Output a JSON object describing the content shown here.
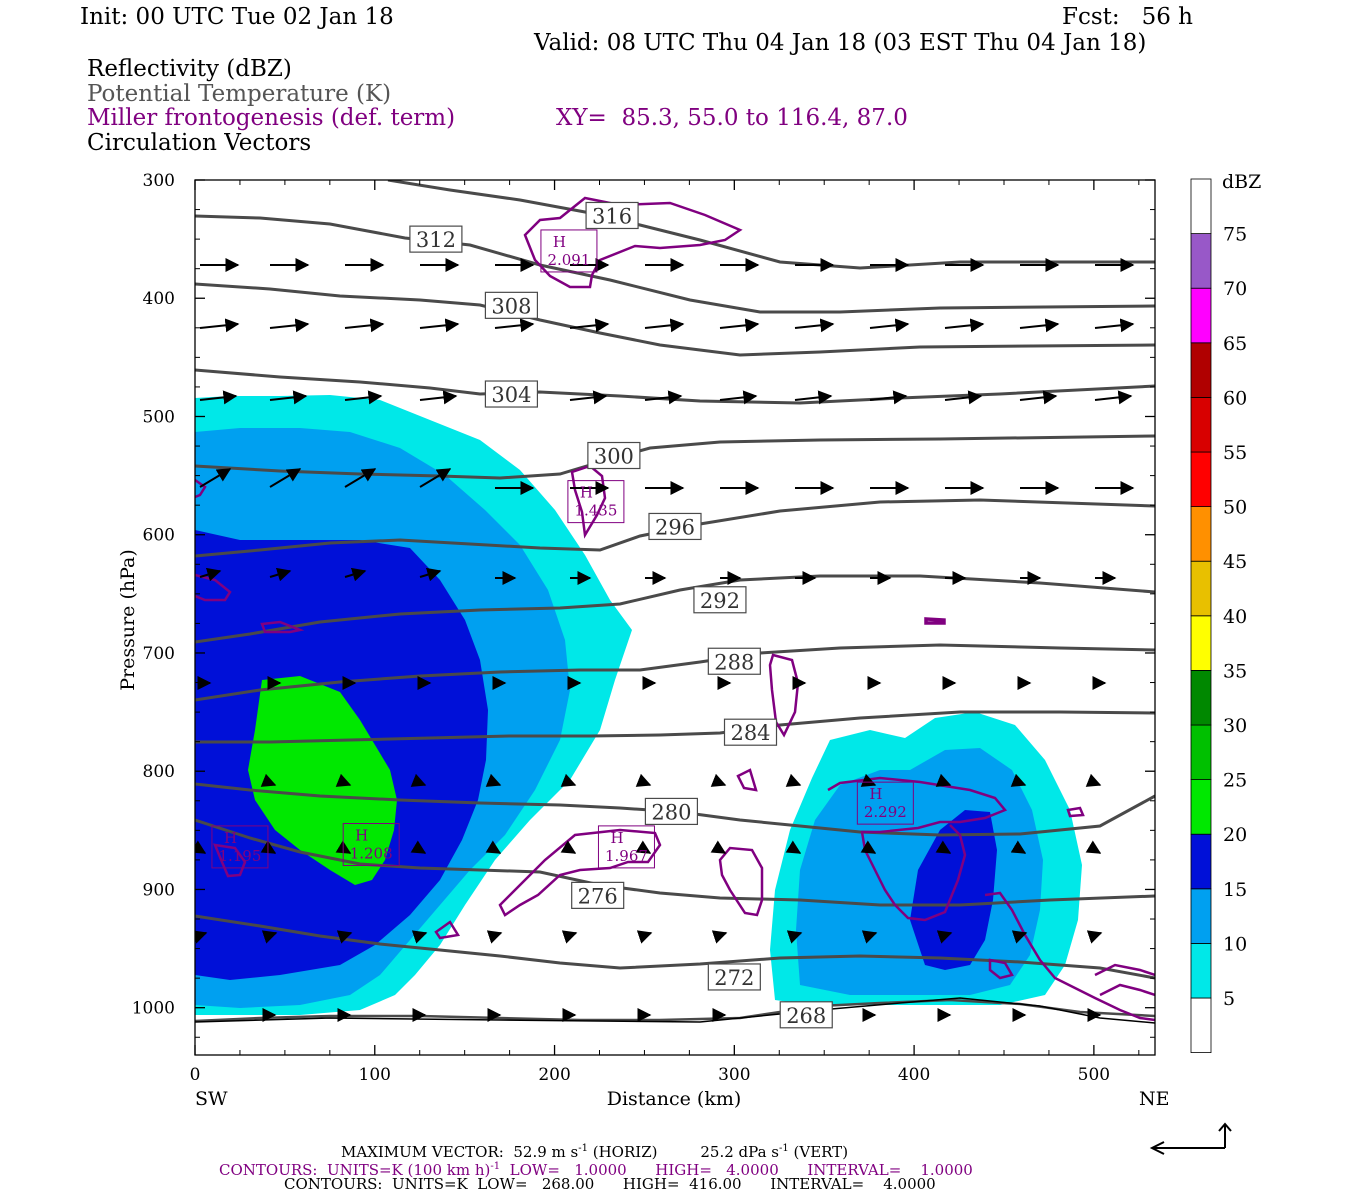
{
  "header": {
    "init": "Init: 00 UTC Tue 02 Jan 18",
    "fcst": "Fcst:   56 h",
    "valid": "Valid: 08 UTC Thu 04 Jan 18 (03 EST Thu 04 Jan 18)",
    "field1": "Reflectivity (dBZ)",
    "field2": "Potential Temperature (K)",
    "field3": "Miller frontogenesis (def. term)",
    "xy": "XY=  85.3, 55.0 to 116.4, 87.0",
    "field4": "Circulation Vectors"
  },
  "colors": {
    "reflectivity": "#00e8e8",
    "theta_line": "#4a4a4a",
    "fronto_line": "#800080",
    "vector": "#000000"
  },
  "chart_data": {
    "type": "cross-section",
    "xlabel": "Distance (km)",
    "ylabel": "Pressure (hPa)",
    "x_ticks": [
      0,
      100,
      200,
      300,
      400,
      500
    ],
    "y_ticks": [
      300,
      400,
      500,
      600,
      700,
      800,
      900,
      1000
    ],
    "xlim": [
      0,
      534
    ],
    "ylim": [
      300,
      1040
    ],
    "x_left_label": "SW",
    "x_right_label": "NE",
    "colorbar": {
      "unit": "dBZ",
      "levels": [
        5,
        10,
        15,
        20,
        25,
        30,
        35,
        40,
        45,
        50,
        55,
        60,
        65,
        70,
        75
      ],
      "colors": [
        "#ffffff",
        "#00e8e8",
        "#00a0f0",
        "#0010d8",
        "#00e800",
        "#00c000",
        "#008800",
        "#ffff00",
        "#e8c000",
        "#ff9000",
        "#ff0000",
        "#d80000",
        "#b00000",
        "#ff00ff",
        "#9858c8",
        "#ffffff"
      ]
    },
    "theta_labels": [
      {
        "value": "316",
        "x": 232,
        "p": 330
      },
      {
        "value": "312",
        "x": 134,
        "p": 350
      },
      {
        "value": "308",
        "x": 176,
        "p": 406
      },
      {
        "value": "304",
        "x": 176,
        "p": 481
      },
      {
        "value": "300",
        "x": 233,
        "p": 533
      },
      {
        "value": "296",
        "x": 267,
        "p": 593
      },
      {
        "value": "292",
        "x": 292,
        "p": 655
      },
      {
        "value": "288",
        "x": 300,
        "p": 707
      },
      {
        "value": "284",
        "x": 309,
        "p": 767
      },
      {
        "value": "280",
        "x": 265,
        "p": 834
      },
      {
        "value": "276",
        "x": 224,
        "p": 905
      },
      {
        "value": "272",
        "x": 300,
        "p": 974
      },
      {
        "value": "268",
        "x": 340,
        "p": 1006
      }
    ],
    "fronto_highs": [
      {
        "label": "H",
        "value": "2.091",
        "x": 208,
        "p": 360
      },
      {
        "label": "H",
        "value": "1.435",
        "x": 223,
        "p": 572
      },
      {
        "label": "H",
        "value": "1.195",
        "x": 25,
        "p": 864
      },
      {
        "label": "H",
        "value": "1.208",
        "x": 98,
        "p": 862
      },
      {
        "label": "H",
        "value": "1.967",
        "x": 240,
        "p": 864
      },
      {
        "label": "H",
        "value": "2.292",
        "x": 384,
        "p": 827
      }
    ]
  },
  "footer": {
    "max_vector_prefix": "MAXIMUM VECTOR:  52.9 m s",
    "max_vector_mid": " (HORIZ)         25.2 dPa s",
    "max_vector_suffix": " (VERT)",
    "sup_minus1": "-1",
    "contours1_prefix": "CONTOURS:  UNITS=K (100 km h)",
    "contours1_suffix": "  LOW=   1.0000      HIGH=   4.0000      INTERVAL=    1.0000",
    "contours2": "CONTOURS:  UNITS=K  LOW=   268.00      HIGH=  416.00      INTERVAL=    4.0000"
  }
}
